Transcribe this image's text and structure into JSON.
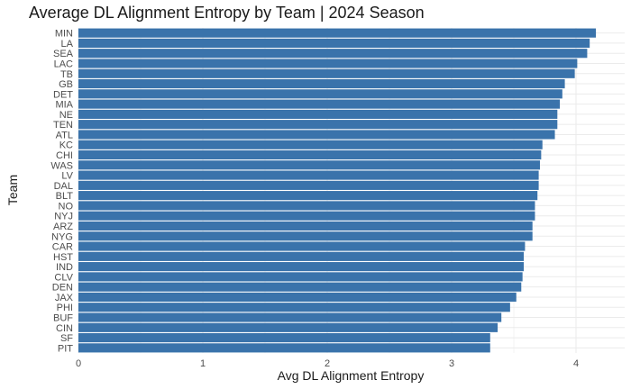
{
  "chart_data": {
    "type": "bar",
    "orientation": "horizontal",
    "title": "Average DL Alignment Entropy by Team | 2024 Season",
    "xlabel": "Avg DL Alignment Entropy",
    "ylabel": "Team",
    "xlim": [
      0,
      4.3
    ],
    "xticks": [
      0,
      1,
      2,
      3,
      4
    ],
    "grid": true,
    "bar_color": "#3a73ab",
    "categories": [
      "MIN",
      "LA",
      "SEA",
      "LAC",
      "TB",
      "GB",
      "DET",
      "MIA",
      "NE",
      "TEN",
      "ATL",
      "KC",
      "CHI",
      "WAS",
      "LV",
      "DAL",
      "BLT",
      "NO",
      "NYJ",
      "ARZ",
      "NYG",
      "CAR",
      "HST",
      "IND",
      "CLV",
      "DEN",
      "JAX",
      "PHI",
      "BUF",
      "CIN",
      "SF",
      "PIT"
    ],
    "values": [
      4.16,
      4.11,
      4.09,
      4.01,
      3.99,
      3.91,
      3.89,
      3.87,
      3.85,
      3.85,
      3.83,
      3.73,
      3.72,
      3.71,
      3.7,
      3.7,
      3.69,
      3.67,
      3.67,
      3.65,
      3.65,
      3.59,
      3.58,
      3.58,
      3.57,
      3.56,
      3.52,
      3.47,
      3.4,
      3.37,
      3.31,
      3.31
    ]
  }
}
